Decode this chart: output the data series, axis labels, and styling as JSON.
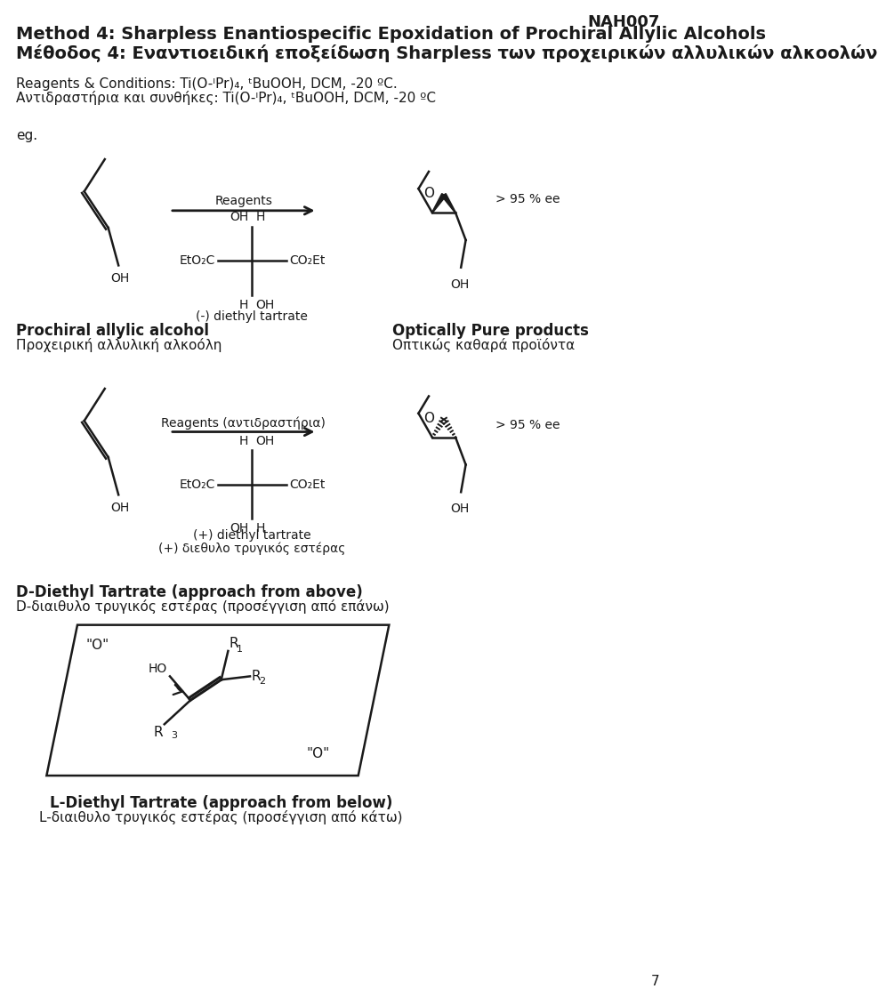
{
  "title_en": "Method 4: Sharpless Enantiospecific Epoxidation of Prochiral Allylic Alcohols",
  "title_gr": "Μέθοδος 4: Εναντιοειδική εποξείδωση Sharpless των προχειρικών αλλυλικών αλκοολών",
  "code": "NAH007",
  "reagents_en": "Reagents & Conditions: Ti(O-ᴵPr)₄, ᵗBuOOH, DCM, -20 ºC.",
  "reagents_gr": "Αντιδραστήρια και συνθήκες: Ti(O-ᴵPr)₄, ᵗBuOOH, DCM, -20 ºC",
  "eg_label": "eg.",
  "prochiral_en": "Prochiral allylic alcohol",
  "prochiral_gr": "Προχειρική αλλυλική αλκοόλη",
  "optically_en": "Optically Pure products",
  "optically_gr": "Οπτικώς καθαρά προϊόντα",
  "ee_label": "> 95 % ee",
  "minus_tartrate": "(-) diethyl tartrate",
  "plus_tartrate_en": "(+) diethyl tartrate",
  "plus_tartrate_gr": "(+) διεθυλο τρυγικός εστέρας",
  "reagents_label1": "Reagents",
  "reagents_label2": "Reagents (αντιδραστήρια)",
  "d_tartrate_en": "D-Diethyl Tartrate (approach from above)",
  "d_tartrate_gr": "D-διαιθυλο τρυγικός εστέρας (προσέγγιση από επάνω)",
  "l_tartrate_en": "L-Diethyl Tartrate (approach from below)",
  "l_tartrate_gr": "L-διαιθυλο τρυγικός εστέρας (προσέγγιση από κάτω)",
  "page_num": "7",
  "bg_color": "#ffffff",
  "text_color": "#1a1a1a"
}
